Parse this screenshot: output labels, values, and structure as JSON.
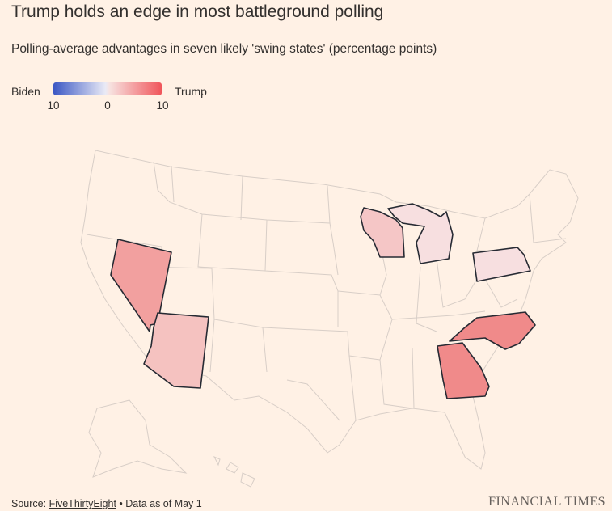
{
  "title": "Trump holds an edge in most battleground polling",
  "subtitle": "Polling-average advantages in seven likely 'swing states' (percentage points)",
  "legend": {
    "left_label": "Biden",
    "right_label": "Trump",
    "ticks": [
      "10",
      "0",
      "10"
    ]
  },
  "colors": {
    "background": "#fff1e5",
    "biden_max": "#3b57c4",
    "trump_max": "#f0555a",
    "state_border": "#d8cec7"
  },
  "states": [
    {
      "name": "Nevada",
      "trump_lead": 5.5,
      "color": "#f2a09f"
    },
    {
      "name": "Arizona",
      "trump_lead": 3.5,
      "color": "#f5c2c0"
    },
    {
      "name": "Wisconsin",
      "trump_lead": 2.5,
      "color": "#f5c6c6"
    },
    {
      "name": "Michigan",
      "trump_lead": 1.0,
      "color": "#f7dfe0"
    },
    {
      "name": "Pennsylvania",
      "trump_lead": 1.0,
      "color": "#f7dfe0"
    },
    {
      "name": "North Carolina",
      "trump_lead": 7.0,
      "color": "#f08a8a"
    },
    {
      "name": "Georgia",
      "trump_lead": 7.0,
      "color": "#f08a8a"
    }
  ],
  "footer": {
    "source_prefix": "Source: ",
    "source_link": "FiveThirtyEight",
    "source_suffix": " • Data as of May 1",
    "brand": "FINANCIAL TIMES"
  }
}
